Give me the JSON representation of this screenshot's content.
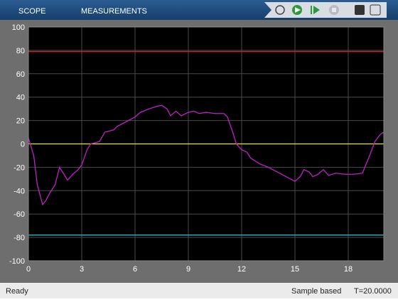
{
  "toolbar": {
    "tabs": [
      "SCOPE",
      "MEASUREMENTS"
    ]
  },
  "status": {
    "left": "Ready",
    "mode": "Sample based",
    "time": "T=20.0000"
  },
  "chart_data": {
    "type": "line",
    "xlim": [
      0,
      20
    ],
    "ylim": [
      -100,
      100
    ],
    "xticks": [
      0,
      3,
      6,
      9,
      12,
      15,
      18
    ],
    "yticks": [
      -100,
      -80,
      -60,
      -40,
      -20,
      0,
      20,
      40,
      60,
      80,
      100
    ],
    "grid": true,
    "series": [
      {
        "color": "#d0202a",
        "x": [
          0,
          20
        ],
        "values": [
          79,
          79
        ]
      },
      {
        "color": "#e6e62a",
        "x": [
          0,
          20
        ],
        "values": [
          0,
          0
        ]
      },
      {
        "color": "#2ab8c8",
        "x": [
          0,
          20
        ],
        "values": [
          -78,
          -78
        ]
      },
      {
        "color": "#c020c8",
        "x": [
          0,
          0.3,
          0.5,
          0.8,
          1.0,
          1.2,
          1.5,
          1.75,
          2.0,
          2.2,
          2.5,
          2.8,
          3.0,
          3.3,
          3.5,
          4.0,
          4.3,
          4.8,
          5.0,
          5.5,
          6.0,
          6.3,
          6.8,
          7.2,
          7.5,
          7.8,
          8.0,
          8.3,
          8.6,
          9.0,
          9.3,
          9.6,
          10.0,
          10.5,
          11.0,
          11.2,
          11.5,
          11.7,
          12.0,
          12.3,
          12.5,
          13.0,
          13.5,
          14.0,
          14.5,
          15.0,
          15.3,
          15.5,
          15.8,
          16.0,
          16.3,
          16.6,
          16.9,
          17.3,
          17.8,
          18.3,
          18.8,
          19.2,
          19.5,
          19.8,
          20
        ],
        "values": [
          5,
          -10,
          -35,
          -52,
          -48,
          -42,
          -35,
          -20,
          -26,
          -31,
          -26,
          -22,
          -18,
          -5,
          0,
          2,
          10,
          12,
          15,
          19,
          23,
          27,
          30,
          32,
          33,
          30,
          24,
          28,
          24,
          27,
          28,
          26,
          27,
          26,
          26,
          23,
          10,
          0,
          -5,
          -7,
          -12,
          -17,
          -20,
          -24,
          -28,
          -32,
          -28,
          -22,
          -24,
          -28,
          -26,
          -22,
          -27,
          -25,
          -26,
          -26,
          -25,
          -10,
          2,
          8,
          10
        ]
      }
    ]
  }
}
